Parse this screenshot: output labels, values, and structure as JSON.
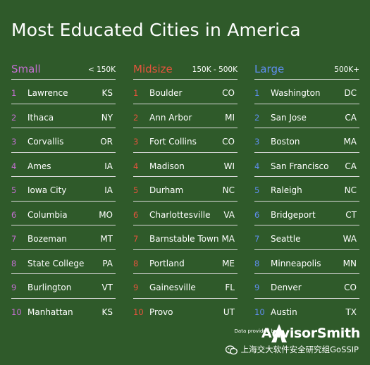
{
  "title": "Most Educated Cities in America",
  "colors": {
    "background": "#2f5a2a",
    "small": "#c46fd2",
    "midsize": "#e5533c",
    "large": "#5f8ef0"
  },
  "categories": [
    {
      "name": "Small",
      "range": "< 150K",
      "color_key": "small",
      "rows": [
        {
          "rank": "1",
          "city": "Lawrence",
          "state": "KS"
        },
        {
          "rank": "2",
          "city": "Ithaca",
          "state": "NY"
        },
        {
          "rank": "3",
          "city": "Corvallis",
          "state": "OR"
        },
        {
          "rank": "4",
          "city": "Ames",
          "state": "IA"
        },
        {
          "rank": "5",
          "city": "Iowa City",
          "state": "IA"
        },
        {
          "rank": "6",
          "city": "Columbia",
          "state": "MO"
        },
        {
          "rank": "7",
          "city": "Bozeman",
          "state": "MT"
        },
        {
          "rank": "8",
          "city": "State College",
          "state": "PA"
        },
        {
          "rank": "9",
          "city": "Burlington",
          "state": "VT"
        },
        {
          "rank": "10",
          "city": "Manhattan",
          "state": "KS"
        }
      ]
    },
    {
      "name": "Midsize",
      "range": "150K - 500K",
      "color_key": "midsize",
      "rows": [
        {
          "rank": "1",
          "city": "Boulder",
          "state": "CO"
        },
        {
          "rank": "2",
          "city": "Ann Arbor",
          "state": "MI"
        },
        {
          "rank": "3",
          "city": "Fort Collins",
          "state": "CO"
        },
        {
          "rank": "4",
          "city": "Madison",
          "state": "WI"
        },
        {
          "rank": "5",
          "city": "Durham",
          "state": "NC"
        },
        {
          "rank": "6",
          "city": "Charlottesville",
          "state": "VA"
        },
        {
          "rank": "7",
          "city": "Barnstable Town",
          "state": "MA"
        },
        {
          "rank": "8",
          "city": "Portland",
          "state": "ME"
        },
        {
          "rank": "9",
          "city": "Gainesville",
          "state": "FL"
        },
        {
          "rank": "10",
          "city": "Provo",
          "state": "UT"
        }
      ]
    },
    {
      "name": "Large",
      "range": "500K+",
      "color_key": "large",
      "rows": [
        {
          "rank": "1",
          "city": "Washington",
          "state": "DC"
        },
        {
          "rank": "2",
          "city": "San Jose",
          "state": "CA"
        },
        {
          "rank": "3",
          "city": "Boston",
          "state": "MA"
        },
        {
          "rank": "4",
          "city": "San Francisco",
          "state": "CA"
        },
        {
          "rank": "5",
          "city": "Raleigh",
          "state": "NC"
        },
        {
          "rank": "6",
          "city": "Bridgeport",
          "state": "CT"
        },
        {
          "rank": "7",
          "city": "Seattle",
          "state": "WA"
        },
        {
          "rank": "8",
          "city": "Minneapolis",
          "state": "MN"
        },
        {
          "rank": "9",
          "city": "Denver",
          "state": "CO"
        },
        {
          "rank": "10",
          "city": "Austin",
          "state": "TX"
        }
      ]
    }
  ],
  "footer": {
    "provided_by": "Data provided by",
    "brand": "AdvisorSmith",
    "brand_icon": "advisorsmith-logo-icon"
  },
  "watermark": {
    "text": "上海交大软件安全研究组GoSSIP",
    "icon": "wechat-icon"
  }
}
